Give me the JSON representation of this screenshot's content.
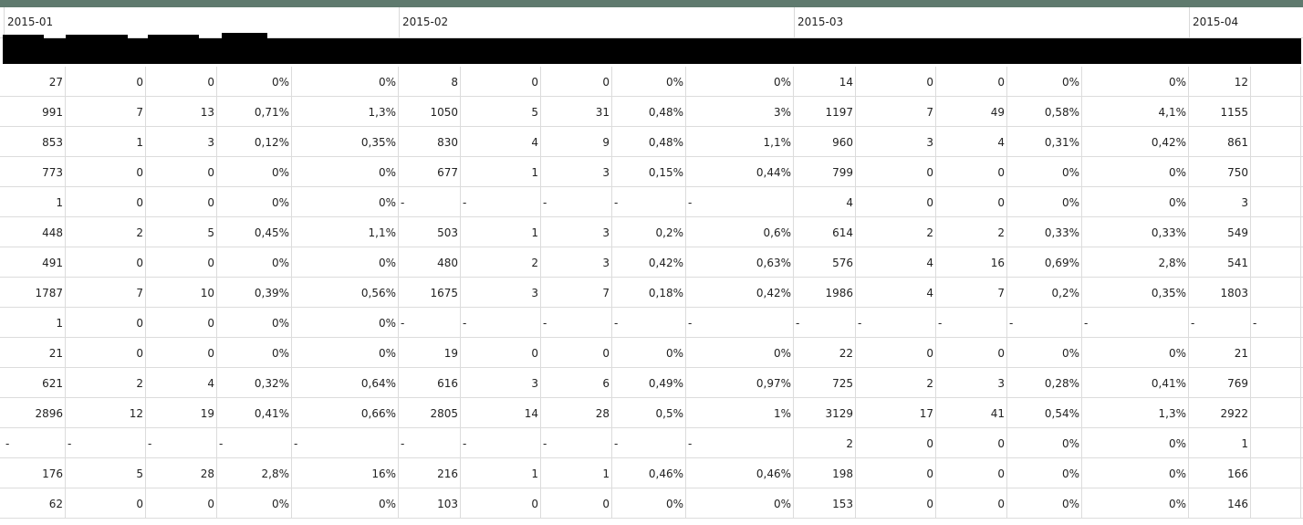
{
  "groups": [
    "2015-01",
    "2015-02",
    "2015-03",
    "2015-04"
  ],
  "rows": [
    [
      "27",
      "0",
      "0",
      "0%",
      "0%",
      "8",
      "0",
      "0",
      "0%",
      "0%",
      "14",
      "0",
      "0",
      "0%",
      "0%",
      "12",
      ""
    ],
    [
      "991",
      "7",
      "13",
      "0,71%",
      "1,3%",
      "1050",
      "5",
      "31",
      "0,48%",
      "3%",
      "1197",
      "7",
      "49",
      "0,58%",
      "4,1%",
      "1155",
      ""
    ],
    [
      "853",
      "1",
      "3",
      "0,12%",
      "0,35%",
      "830",
      "4",
      "9",
      "0,48%",
      "1,1%",
      "960",
      "3",
      "4",
      "0,31%",
      "0,42%",
      "861",
      ""
    ],
    [
      "773",
      "0",
      "0",
      "0%",
      "0%",
      "677",
      "1",
      "3",
      "0,15%",
      "0,44%",
      "799",
      "0",
      "0",
      "0%",
      "0%",
      "750",
      ""
    ],
    [
      "1",
      "0",
      "0",
      "0%",
      "0%",
      "-",
      "-",
      "-",
      "-",
      "-",
      "4",
      "0",
      "0",
      "0%",
      "0%",
      "3",
      ""
    ],
    [
      "448",
      "2",
      "5",
      "0,45%",
      "1,1%",
      "503",
      "1",
      "3",
      "0,2%",
      "0,6%",
      "614",
      "2",
      "2",
      "0,33%",
      "0,33%",
      "549",
      ""
    ],
    [
      "491",
      "0",
      "0",
      "0%",
      "0%",
      "480",
      "2",
      "3",
      "0,42%",
      "0,63%",
      "576",
      "4",
      "16",
      "0,69%",
      "2,8%",
      "541",
      ""
    ],
    [
      "1787",
      "7",
      "10",
      "0,39%",
      "0,56%",
      "1675",
      "3",
      "7",
      "0,18%",
      "0,42%",
      "1986",
      "4",
      "7",
      "0,2%",
      "0,35%",
      "1803",
      ""
    ],
    [
      "1",
      "0",
      "0",
      "0%",
      "0%",
      "-",
      "-",
      "-",
      "-",
      "-",
      "-",
      "-",
      "-",
      "-",
      "-",
      "-",
      "-"
    ],
    [
      "21",
      "0",
      "0",
      "0%",
      "0%",
      "19",
      "0",
      "0",
      "0%",
      "0%",
      "22",
      "0",
      "0",
      "0%",
      "0%",
      "21",
      ""
    ],
    [
      "621",
      "2",
      "4",
      "0,32%",
      "0,64%",
      "616",
      "3",
      "6",
      "0,49%",
      "0,97%",
      "725",
      "2",
      "3",
      "0,28%",
      "0,41%",
      "769",
      ""
    ],
    [
      "2896",
      "12",
      "19",
      "0,41%",
      "0,66%",
      "2805",
      "14",
      "28",
      "0,5%",
      "1%",
      "3129",
      "17",
      "41",
      "0,54%",
      "1,3%",
      "2922",
      ""
    ],
    [
      "-",
      "-",
      "-",
      "-",
      "-",
      "-",
      "-",
      "-",
      "-",
      "-",
      "2",
      "0",
      "0",
      "0%",
      "0%",
      "1",
      ""
    ],
    [
      "176",
      "5",
      "28",
      "2,8%",
      "16%",
      "216",
      "1",
      "1",
      "0,46%",
      "0,46%",
      "198",
      "0",
      "0",
      "0%",
      "0%",
      "166",
      ""
    ],
    [
      "62",
      "0",
      "0",
      "0%",
      "0%",
      "103",
      "0",
      "0",
      "0%",
      "0%",
      "153",
      "0",
      "0",
      "0%",
      "0%",
      "146",
      ""
    ]
  ]
}
